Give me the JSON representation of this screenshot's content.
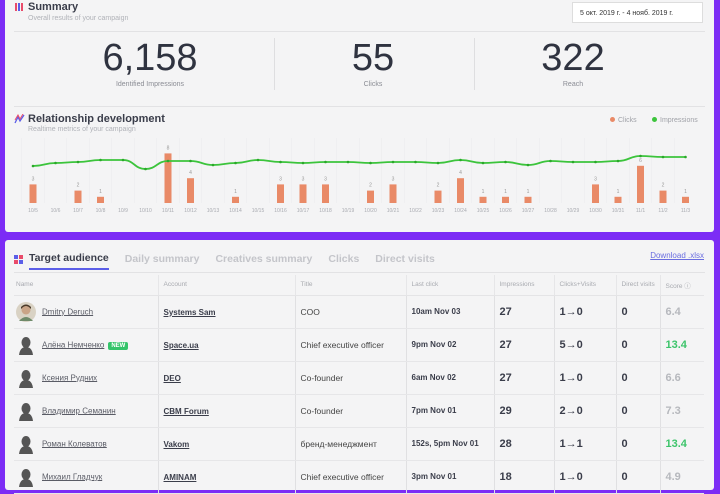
{
  "summary": {
    "title": "Summary",
    "subtitle": "Overall results of your campaign",
    "date_range": "5 окт. 2019 г. - 4 нояб. 2019 г.",
    "stats": [
      {
        "value": "6,158",
        "label": "Identified Impressions"
      },
      {
        "value": "55",
        "label": "Clicks"
      },
      {
        "value": "322",
        "label": "Reach"
      }
    ]
  },
  "relationship": {
    "title": "Relationship development",
    "subtitle": "Realtime metrics of your campaign"
  },
  "colors": {
    "clicks": "#e98a67",
    "impressions": "#3cc43c",
    "accent": "#5b5ee8",
    "background": "#7c2cf5",
    "score_high": "#3cc46a"
  },
  "chart_data": {
    "type": "bar+line",
    "legend_position": "top-right",
    "categories": [
      "10/5",
      "10/6",
      "10/7",
      "10/8",
      "10/9",
      "10/10",
      "10/11",
      "10/12",
      "10/13",
      "10/14",
      "10/15",
      "10/16",
      "10/17",
      "10/18",
      "10/19",
      "10/20",
      "10/21",
      "10/22",
      "10/23",
      "10/24",
      "10/25",
      "10/26",
      "10/27",
      "10/28",
      "10/29",
      "10/30",
      "10/31",
      "11/1",
      "11/2",
      "11/3"
    ],
    "series": [
      {
        "name": "Clicks",
        "type": "bar",
        "values": [
          3,
          0,
          2,
          1,
          0,
          0,
          8,
          4,
          0,
          1,
          0,
          3,
          3,
          3,
          0,
          2,
          3,
          0,
          2,
          4,
          1,
          1,
          1,
          0,
          0,
          3,
          1,
          6,
          2,
          1
        ]
      },
      {
        "name": "Impressions",
        "type": "line",
        "values": [
          185,
          200,
          205,
          215,
          215,
          170,
          210,
          210,
          190,
          200,
          215,
          205,
          200,
          205,
          205,
          200,
          205,
          205,
          200,
          215,
          200,
          205,
          190,
          210,
          205,
          205,
          210,
          235,
          230,
          230
        ]
      }
    ]
  },
  "audience": {
    "tabs": [
      "Target audience",
      "Daily summary",
      "Creatives summary",
      "Clicks",
      "Direct visits"
    ],
    "download": "Download .xlsx",
    "columns": [
      "Name",
      "Account",
      "Title",
      "Last click",
      "Impressions",
      "Clicks+Visits",
      "Direct visits",
      "Score ⓘ"
    ],
    "rows": [
      {
        "name": "Dmitry Deruch",
        "new": "",
        "account": "Systems Sam",
        "title": "COO",
        "last_click": "10am Nov 03",
        "impressions": "27",
        "clicks_visits": "1→0",
        "direct": "0",
        "score": "6.4",
        "photo": true
      },
      {
        "name": "Алёна Немченко",
        "new": "NEW",
        "account": "Space.ua",
        "title": "Chief executive officer",
        "last_click": "9pm Nov 02",
        "impressions": "27",
        "clicks_visits": "5→0",
        "direct": "0",
        "score": "13.4"
      },
      {
        "name": "Ксения Рудних",
        "new": "",
        "account": "DEO",
        "title": "Co-founder",
        "last_click": "6am Nov 02",
        "impressions": "27",
        "clicks_visits": "1→0",
        "direct": "0",
        "score": "6.6"
      },
      {
        "name": "Владимир Семанин",
        "new": "",
        "account": "CBM Forum",
        "title": "Co-founder",
        "last_click": "7pm Nov 01",
        "impressions": "29",
        "clicks_visits": "2→0",
        "direct": "0",
        "score": "7.3"
      },
      {
        "name": "Роман Колеватов",
        "new": "",
        "account": "Vakom",
        "title": "бренд-менеджмент",
        "last_click": "152s, 5pm Nov 01",
        "impressions": "28",
        "clicks_visits": "1→1",
        "direct": "0",
        "score": "13.4"
      },
      {
        "name": "Михаил Гладчук",
        "new": "",
        "account": "AMINAM",
        "title": "Chief executive officer",
        "last_click": "3pm Nov 01",
        "impressions": "18",
        "clicks_visits": "1→0",
        "direct": "0",
        "score": "4.9"
      }
    ]
  }
}
